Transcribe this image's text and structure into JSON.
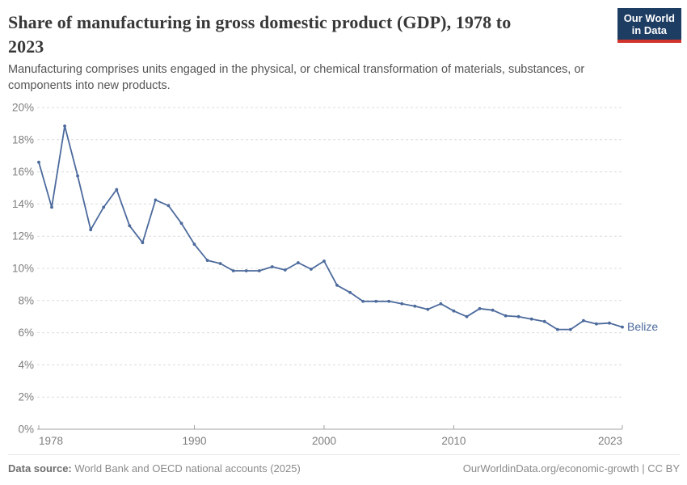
{
  "header": {
    "title": "Share of manufacturing in gross domestic product (GDP), 1978 to 2023",
    "logo": {
      "line1": "Our World",
      "line2": "in Data"
    }
  },
  "subtitle": "Manufacturing comprises units engaged in the physical, or chemical transformation of materials, substances, or components into new products.",
  "colors": {
    "line": "#4C6A9C",
    "logo_navy": "#1D3D63",
    "logo_red": "#D0342C",
    "gridline": "#dcdcdc",
    "axis": "#a3a3a3",
    "tick_label": "#7e7e7e"
  },
  "chart_data": {
    "type": "line",
    "title": "Share of manufacturing in gross domestic product (GDP), 1978 to 2023",
    "xlabel": "",
    "ylabel": "",
    "ylim": [
      0,
      20
    ],
    "ytick_step": 2,
    "ytick_suffix": "%",
    "xticks": [
      1978,
      1990,
      2000,
      2010,
      2023
    ],
    "grid": "horizontal-dashed",
    "legend_position": "end-of-line-label",
    "x": [
      1978,
      1979,
      1980,
      1981,
      1982,
      1983,
      1984,
      1985,
      1986,
      1987,
      1988,
      1989,
      1990,
      1991,
      1992,
      1993,
      1994,
      1995,
      1996,
      1997,
      1998,
      1999,
      2000,
      2001,
      2002,
      2003,
      2004,
      2005,
      2006,
      2007,
      2008,
      2009,
      2010,
      2011,
      2012,
      2013,
      2014,
      2015,
      2016,
      2017,
      2018,
      2019,
      2020,
      2021,
      2022,
      2023
    ],
    "series": [
      {
        "name": "Belize",
        "color": "#4C6A9C",
        "values": [
          16.6,
          13.8,
          18.85,
          15.75,
          12.4,
          13.8,
          14.9,
          12.65,
          11.6,
          14.25,
          13.9,
          12.8,
          11.5,
          10.5,
          10.3,
          9.85,
          9.85,
          9.85,
          10.1,
          9.9,
          10.35,
          9.95,
          10.45,
          8.95,
          8.5,
          7.95,
          7.95,
          7.95,
          7.8,
          7.65,
          7.45,
          7.8,
          7.35,
          7.0,
          7.5,
          7.4,
          7.05,
          7.0,
          6.85,
          6.7,
          6.2,
          6.2,
          6.75,
          6.55,
          6.6,
          6.35
        ]
      }
    ]
  },
  "footer": {
    "datasource_label": "Data source:",
    "datasource_value": " World Bank and OECD national accounts (2025)",
    "right_text": "OurWorldinData.org/economic-growth | CC BY"
  }
}
